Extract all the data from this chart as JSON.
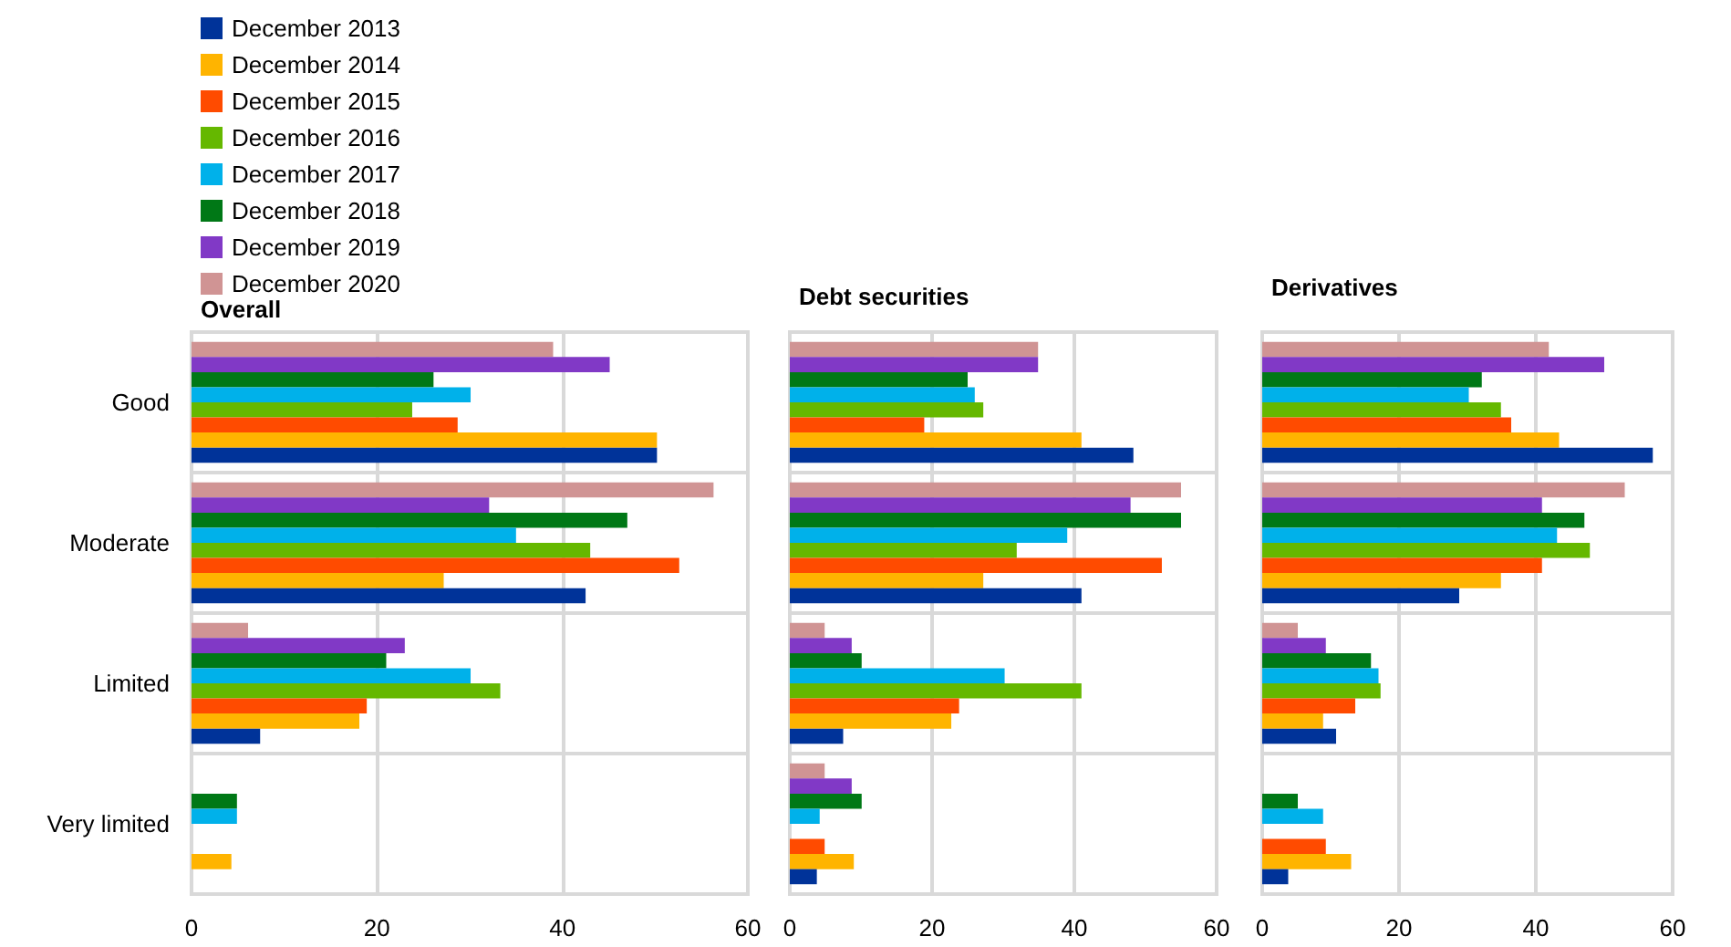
{
  "chart_data": [
    {
      "type": "bar",
      "orientation": "horizontal",
      "title": "Overall",
      "categories": [
        "Good",
        "Moderate",
        "Limited",
        "Very limited"
      ],
      "xlim": [
        0,
        60
      ],
      "xticks": [
        0,
        20,
        40,
        60
      ],
      "grid": true,
      "legend": "top left",
      "series": [
        {
          "name": "December 2013",
          "color": "#003399",
          "values": [
            50.2,
            42.5,
            7.4,
            null
          ]
        },
        {
          "name": "December 2014",
          "color": "#ffb400",
          "values": [
            50.2,
            27.2,
            18.1,
            4.3
          ]
        },
        {
          "name": "December 2015",
          "color": "#ff4b00",
          "values": [
            28.7,
            52.6,
            18.9,
            null
          ]
        },
        {
          "name": "December 2016",
          "color": "#65b800",
          "values": [
            23.8,
            43.0,
            33.3,
            null
          ]
        },
        {
          "name": "December 2017",
          "color": "#00b1ea",
          "values": [
            30.1,
            35.0,
            30.1,
            4.9
          ]
        },
        {
          "name": "December 2018",
          "color": "#007816",
          "values": [
            26.1,
            47.0,
            21.0,
            4.9
          ]
        },
        {
          "name": "December 2019",
          "color": "#8139c6",
          "values": [
            45.1,
            32.1,
            23.0,
            null
          ]
        },
        {
          "name": "December 2020",
          "color": "#d09494",
          "values": [
            39.0,
            56.3,
            6.1,
            null
          ]
        }
      ]
    },
    {
      "type": "bar",
      "orientation": "horizontal",
      "title": "Debt securities",
      "categories": [
        null,
        null,
        null,
        null
      ],
      "xlim": [
        0,
        60
      ],
      "xticks": [
        0,
        20,
        40,
        60
      ],
      "grid": true,
      "legend": false,
      "tick_labels": "x",
      "series": [
        {
          "color": "#003399",
          "values": [
            48.3,
            41.0,
            7.5,
            3.8
          ]
        },
        {
          "color": "#ffb400",
          "values": [
            41.0,
            27.2,
            22.7,
            9.0
          ]
        },
        {
          "color": "#ff4b00",
          "values": [
            18.9,
            52.3,
            23.8,
            4.9
          ]
        },
        {
          "color": "#65b800",
          "values": [
            27.2,
            31.9,
            41.0,
            null
          ]
        },
        {
          "color": "#00b1ea",
          "values": [
            26.0,
            39.0,
            30.2,
            4.2
          ]
        },
        {
          "color": "#007816",
          "values": [
            25.0,
            55.0,
            10.1,
            10.1
          ]
        },
        {
          "color": "#8139c6",
          "values": [
            34.9,
            47.9,
            8.7,
            8.7
          ]
        },
        {
          "color": "#d09494",
          "values": [
            34.9,
            55.0,
            4.9,
            4.9
          ]
        }
      ]
    },
    {
      "type": "bar",
      "orientation": "horizontal",
      "title": "Derivatives",
      "categories": [
        null,
        null,
        null,
        null
      ],
      "xlim": [
        0,
        60
      ],
      "xticks": [
        0,
        20,
        40,
        60
      ],
      "grid": true,
      "legend": false,
      "tick_labels": "x",
      "series": [
        {
          "color": "#003399",
          "values": [
            57.1,
            28.8,
            10.8,
            3.8
          ]
        },
        {
          "color": "#ffb400",
          "values": [
            43.4,
            34.9,
            8.9,
            13.0
          ]
        },
        {
          "color": "#ff4b00",
          "values": [
            36.4,
            40.9,
            13.6,
            9.3
          ]
        },
        {
          "color": "#65b800",
          "values": [
            34.9,
            47.9,
            17.3,
            null
          ]
        },
        {
          "color": "#00b1ea",
          "values": [
            30.2,
            43.1,
            17.0,
            8.9
          ]
        },
        {
          "color": "#007816",
          "values": [
            32.1,
            47.1,
            15.9,
            5.2
          ]
        },
        {
          "color": "#8139c6",
          "values": [
            50.0,
            40.9,
            9.3,
            null
          ]
        },
        {
          "color": "#d09494",
          "values": [
            41.9,
            53.0,
            5.2,
            null
          ]
        }
      ]
    }
  ]
}
